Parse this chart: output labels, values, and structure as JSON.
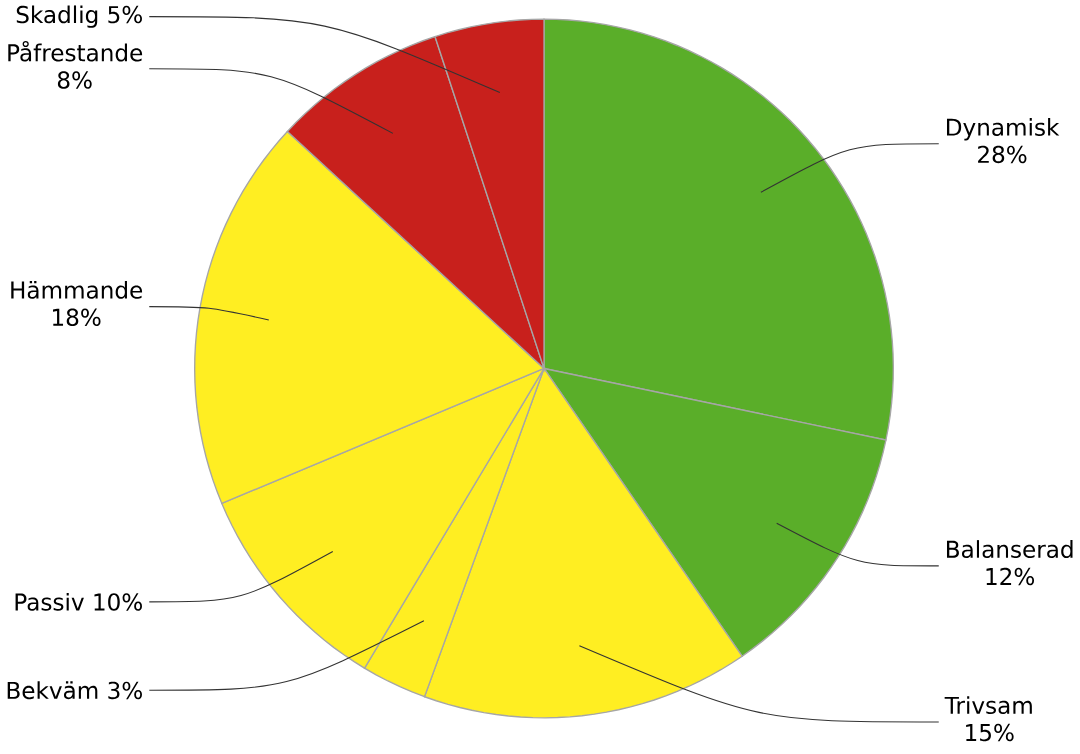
{
  "chart_data": {
    "type": "pie",
    "categories": [
      "Dynamisk",
      "Balanserad",
      "Trivsam",
      "Bekväm",
      "Passiv",
      "Hämmande",
      "Påfrestande",
      "Skadlig"
    ],
    "values": [
      28,
      12,
      15,
      3,
      10,
      18,
      8,
      5
    ],
    "value_labels": [
      "28%",
      "12%",
      "15%",
      "3%",
      "10%",
      "18%",
      "8%",
      "5%"
    ],
    "colors": [
      "#5aae29",
      "#5aae29",
      "#ffee22",
      "#ffee22",
      "#ffee22",
      "#ffee22",
      "#c8201c",
      "#c8201c"
    ]
  }
}
